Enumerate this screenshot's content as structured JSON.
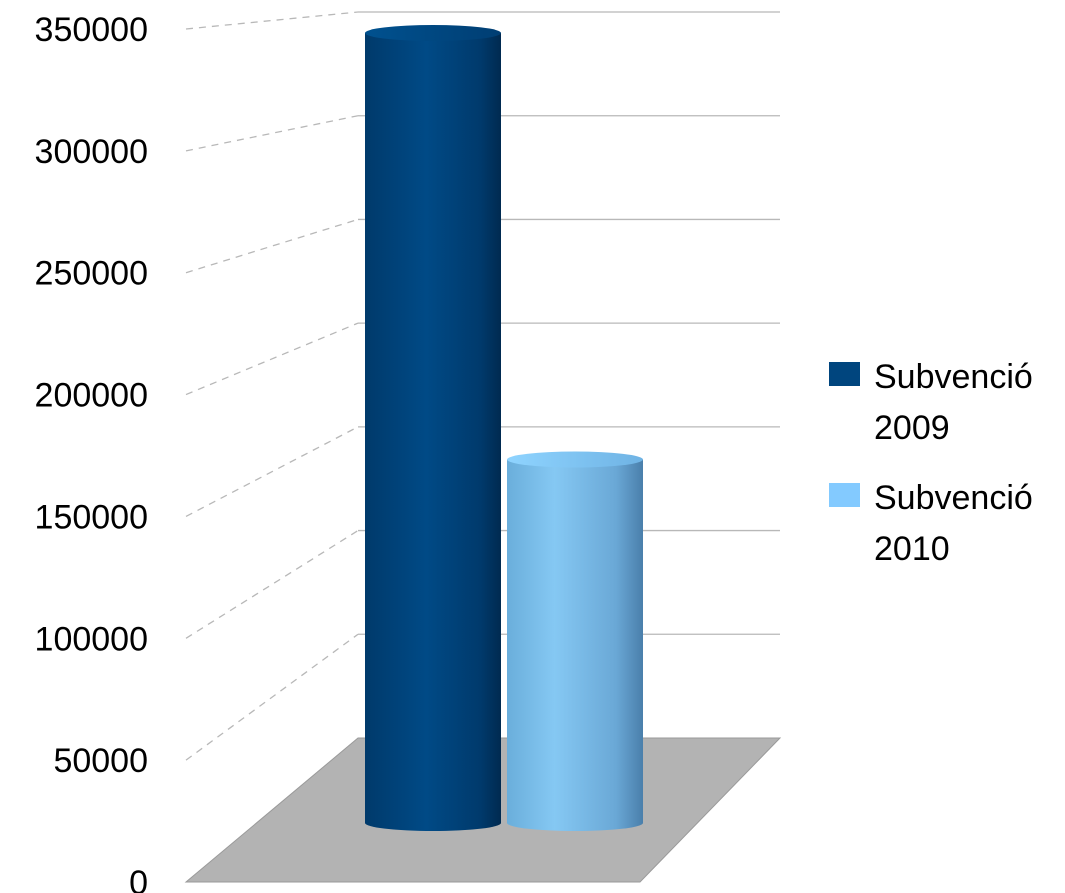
{
  "chart_data": {
    "type": "bar",
    "style": "3d-cylinder",
    "categories": [
      ""
    ],
    "series": [
      {
        "name": "Subvenció 2009",
        "values": [
          350000
        ],
        "color": "#00457E"
      },
      {
        "name": "Subvenció 2010",
        "values": [
          175000
        ],
        "color": "#83CAFF"
      }
    ],
    "ylim": [
      0,
      350000
    ],
    "yticks": [
      "0",
      "50000",
      "100000",
      "150000",
      "200000",
      "250000",
      "300000",
      "350000"
    ],
    "grid": true,
    "legend": "right",
    "xlabel": "",
    "ylabel": ""
  }
}
